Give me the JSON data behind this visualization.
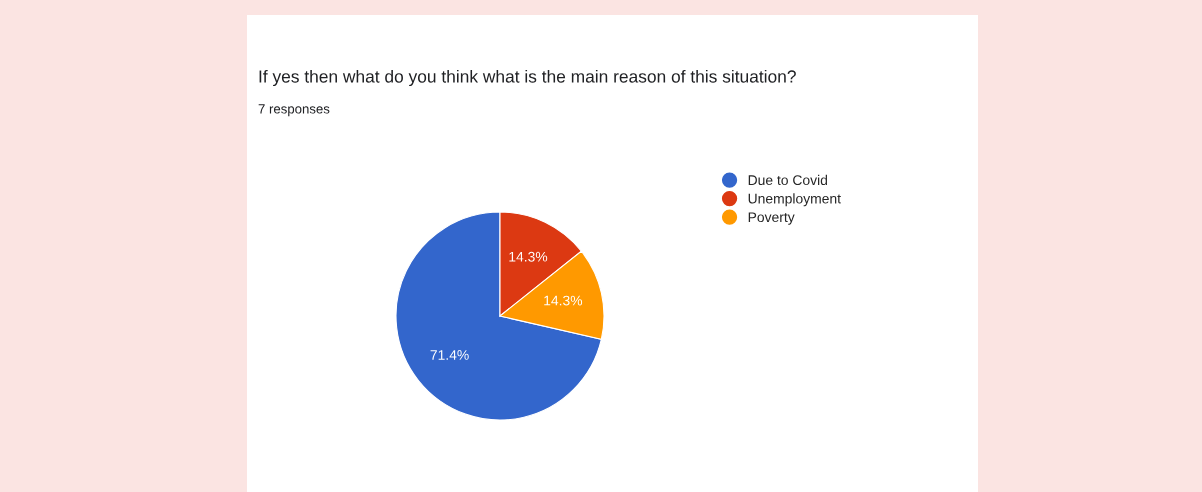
{
  "chart_data": {
    "type": "pie",
    "title": "If yes then what do you think what is the main reason of this situation?",
    "subtitle": "7 responses",
    "categories": [
      "Due to Covid",
      "Unemployment",
      "Poverty"
    ],
    "values": [
      71.4,
      14.3,
      14.3
    ],
    "value_labels": [
      "71.4%",
      "14.3%",
      "14.3%"
    ],
    "colors": [
      "#3366cc",
      "#dc3912",
      "#ff9900"
    ],
    "legend": "right"
  }
}
